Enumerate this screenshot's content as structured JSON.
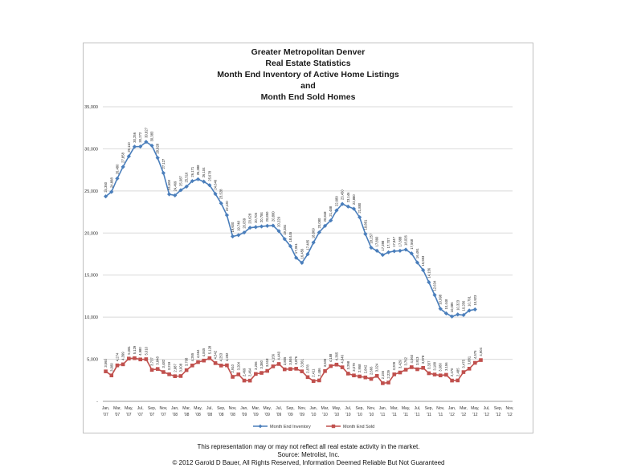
{
  "chart_data": {
    "type": "line",
    "title_lines": [
      "Greater Metropolitan Denver",
      "Real Estate Statistics",
      "Month End Inventory of Active Home Listings",
      "and",
      "Month End Sold Homes"
    ],
    "xlabel": "",
    "ylabel": "",
    "ylim": [
      0,
      35000
    ],
    "yticks": [
      0,
      5000,
      10000,
      15000,
      20000,
      25000,
      30000,
      35000
    ],
    "ytick_labels": [
      "-",
      "5,000",
      "10,000",
      "15,000",
      "20,000",
      "25,000",
      "30,000",
      "35,000"
    ],
    "grid": true,
    "legend_position": "bottom-center",
    "tick_labels": [
      [
        "Jan,",
        "'07"
      ],
      [
        "Mar,",
        "'07"
      ],
      [
        "May,",
        "'07"
      ],
      [
        "Jul,",
        "'07"
      ],
      [
        "Sep,",
        "'07"
      ],
      [
        "Nov,",
        "'07"
      ],
      [
        "Jan,",
        "'08"
      ],
      [
        "Mar,",
        "'08"
      ],
      [
        "May,",
        "'08"
      ],
      [
        "Jul,",
        "'08"
      ],
      [
        "Sep,",
        "'08"
      ],
      [
        "Nov,",
        "'08"
      ],
      [
        "Jan,",
        "'09"
      ],
      [
        "Mar,",
        "'09"
      ],
      [
        "May,",
        "'09"
      ],
      [
        "Jul,",
        "'09"
      ],
      [
        "Sep,",
        "'09"
      ],
      [
        "Nov,",
        "'09"
      ],
      [
        "Jan,",
        "'10"
      ],
      [
        "Mar,",
        "'10"
      ],
      [
        "May,",
        "'10"
      ],
      [
        "Jul,",
        "'10"
      ],
      [
        "Sep,",
        "'10"
      ],
      [
        "Nov,",
        "'10"
      ],
      [
        "Jan,",
        "'11"
      ],
      [
        "Mar,",
        "'11"
      ],
      [
        "May,",
        "'11"
      ],
      [
        "Jul,",
        "'11"
      ],
      [
        "Sep,",
        "'11"
      ],
      [
        "Nov,",
        "'11"
      ],
      [
        "Jan,",
        "'12"
      ],
      [
        "Mar,",
        "'12"
      ],
      [
        "May,",
        "'12"
      ],
      [
        "Jul,",
        "'12"
      ],
      [
        "Sep,",
        "'12"
      ],
      [
        "Nov,",
        "'12"
      ]
    ],
    "months_total": 71,
    "series": [
      {
        "name": "Month End Inventory",
        "color": "#4a7ebb",
        "marker": "diamond",
        "values": [
          24350,
          24888,
          26480,
          27858,
          29110,
          30256,
          30272,
          30827,
          30383,
          28928,
          27127,
          24608,
          24469,
          25087,
          25516,
          26171,
          26388,
          26104,
          25678,
          24646,
          23528,
          22120,
          19600,
          19748,
          20059,
          20628,
          20705,
          20784,
          20850,
          20880,
          20229,
          19284,
          18445,
          17061,
          16456,
          17485,
          18869,
          20080,
          20848,
          21488,
          22689,
          23450,
          23146,
          22880,
          21880,
          19881,
          18257,
          17890,
          17398,
          17707,
          17847,
          17888,
          18026,
          17568,
          16491,
          15593,
          14156,
          12634,
          10998,
          10448,
          10086,
          10323,
          10256,
          10791,
          10923
        ],
        "labels": [
          "24,350",
          "24,888",
          "26,480",
          "27,858",
          "29,110",
          "30,256",
          "30,272",
          "30,827",
          "30,383",
          "28,928",
          "27,127",
          "24,608",
          "24,469",
          "25,087",
          "25,516",
          "26,171",
          "26,388",
          "26,104",
          "25,678",
          "24,646",
          "23,528",
          "22,120",
          "19,600",
          "19,748",
          "20,059",
          "20,628",
          "20,705",
          "20,784",
          "20,850",
          "20,880",
          "20,229",
          "19,284",
          "18,445",
          "17,061",
          "16,456",
          "17,485",
          "18,869",
          "20,080",
          "20,848",
          "21,488",
          "22,689",
          "23,450",
          "23,146",
          "22,880",
          "21,880",
          "19,881",
          "18,257",
          "17,890",
          "17,398",
          "17,707",
          "17,847",
          "17,888",
          "18,026",
          "17,568",
          "16,491",
          "15,593",
          "14,156",
          "12,634",
          "10,998",
          "10,448",
          "10,086",
          "10,323",
          "10,256",
          "10,791",
          "10,923"
        ]
      },
      {
        "name": "Month End Sold",
        "color": "#c0504d",
        "marker": "square",
        "values": [
          3560,
          3080,
          4274,
          4399,
          5081,
          5129,
          4980,
          5010,
          3737,
          3848,
          3482,
          3219,
          2987,
          3008,
          3708,
          4265,
          4664,
          4845,
          5128,
          4542,
          4253,
          4282,
          2910,
          3204,
          2469,
          2464,
          3256,
          3380,
          3618,
          4156,
          4440,
          3805,
          3846,
          3876,
          3561,
          2878,
          2411,
          2486,
          3600,
          4188,
          4365,
          4046,
          3298,
          3079,
          2958,
          2842,
          2666,
          3024,
          2156,
          2229,
          3209,
          3429,
          3762,
          4060,
          3813,
          3978,
          3337,
          3188,
          3080,
          3156,
          2470,
          2485,
          3475,
          3881,
          4575,
          4904
        ],
        "labels": [
          "3,560",
          "3,080",
          "4,274",
          "4,399",
          "5,081",
          "5,129",
          "4,980",
          "5,010",
          "3,737",
          "3,848",
          "3,482",
          "3,219",
          "2,987",
          "3,008",
          "3,708",
          "4,265",
          "4,664",
          "4,845",
          "5,128",
          "4,542",
          "4,253",
          "4,282",
          "2,910",
          "3,204",
          "2,469",
          "2,464",
          "3,256",
          "3,380",
          "3,618",
          "4,156",
          "4,440",
          "3,805",
          "3,846",
          "3,876",
          "3,561",
          "2,878",
          "2,411",
          "2,486",
          "3,600",
          "4,188",
          "4,365",
          "4,046",
          "3,298",
          "3,079",
          "2,958",
          "2,842",
          "2,666",
          "3,024",
          "2,156",
          "2,229",
          "3,209",
          "3,429",
          "3,762",
          "4,060",
          "3,813",
          "3,978",
          "3,337",
          "3,188",
          "3,080",
          "3,156",
          "2,470",
          "2,485",
          "3,475",
          "3,881",
          "4,575",
          "4,904"
        ]
      }
    ]
  },
  "footer": {
    "line1": "This representation may or may not reflect all real estate activity in the market.",
    "line2": "Source:  Metrolist, Inc.",
    "line3": "© 2012 Garold D Bauer, All Rights Reserved, Information Deemed Reliable But Not Guaranteed"
  }
}
